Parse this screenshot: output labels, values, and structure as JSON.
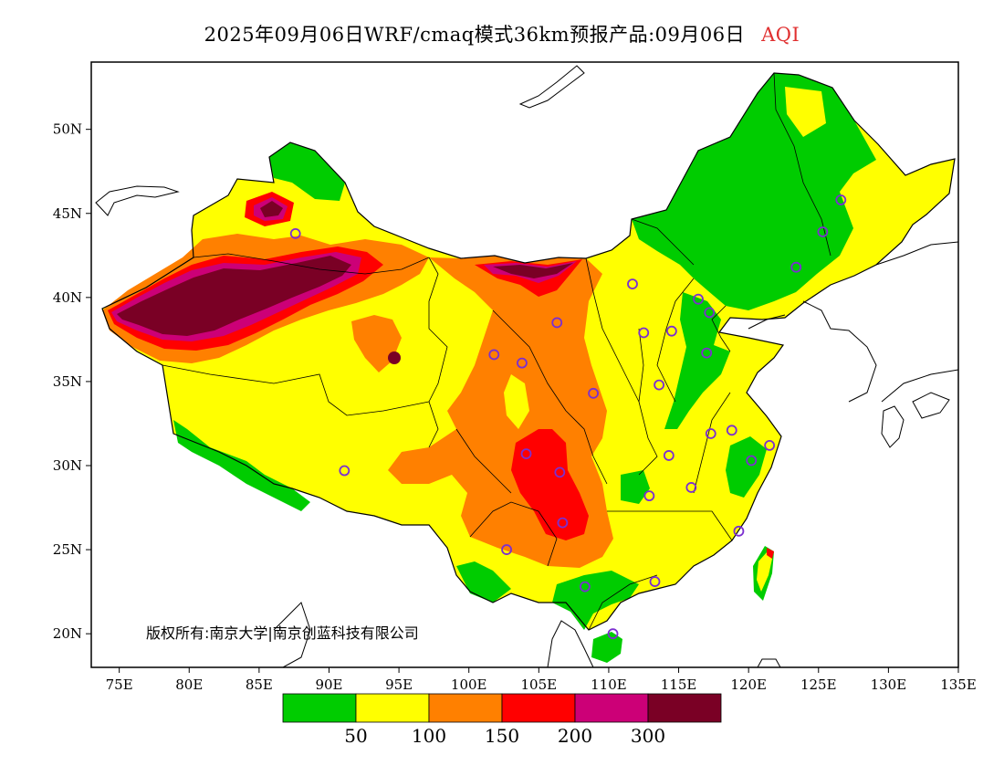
{
  "title": "2025年09月06日WRF/cmaq模式36km预报产品:09月06日",
  "title_highlight": "AQI",
  "copyright": "版权所有:南京大学|南京创蓝科技有限公司",
  "colors": {
    "c0_50": "#00cc00",
    "c50_100": "#ffff00",
    "c100_150": "#ff8000",
    "c150_200": "#ff0000",
    "c200_300": "#cc0077",
    "c300": "#7a0025",
    "title_highlight": "#e03030",
    "station": "#7b2fd0"
  },
  "chart_data": {
    "type": "heatmap",
    "axes": {
      "lon_range": [
        73,
        135
      ],
      "lat_range": [
        18,
        54
      ],
      "x_ticks": [
        {
          "value": 75,
          "label": "75E"
        },
        {
          "value": 80,
          "label": "80E"
        },
        {
          "value": 85,
          "label": "85E"
        },
        {
          "value": 90,
          "label": "90E"
        },
        {
          "value": 95,
          "label": "95E"
        },
        {
          "value": 100,
          "label": "100E"
        },
        {
          "value": 105,
          "label": "105E"
        },
        {
          "value": 110,
          "label": "110E"
        },
        {
          "value": 115,
          "label": "115E"
        },
        {
          "value": 120,
          "label": "120E"
        },
        {
          "value": 125,
          "label": "125E"
        },
        {
          "value": 130,
          "label": "130E"
        },
        {
          "value": 135,
          "label": "135E"
        }
      ],
      "y_ticks": [
        {
          "value": 20,
          "label": "20N"
        },
        {
          "value": 25,
          "label": "25N"
        },
        {
          "value": 30,
          "label": "30N"
        },
        {
          "value": 35,
          "label": "35N"
        },
        {
          "value": 40,
          "label": "40N"
        },
        {
          "value": 45,
          "label": "45N"
        },
        {
          "value": 50,
          "label": "50N"
        }
      ]
    },
    "legend": {
      "colors": [
        "#00cc00",
        "#ffff00",
        "#ff8000",
        "#ff0000",
        "#cc0077",
        "#7a0025"
      ],
      "labels": [
        "50",
        "100",
        "150",
        "200",
        "300"
      ]
    },
    "stations": [
      {
        "lon": 87.6,
        "lat": 43.8
      },
      {
        "lon": 91.1,
        "lat": 29.7
      },
      {
        "lon": 101.8,
        "lat": 36.6
      },
      {
        "lon": 103.8,
        "lat": 36.1
      },
      {
        "lon": 106.3,
        "lat": 38.5
      },
      {
        "lon": 111.7,
        "lat": 40.8
      },
      {
        "lon": 108.9,
        "lat": 34.3
      },
      {
        "lon": 104.1,
        "lat": 30.7
      },
      {
        "lon": 106.5,
        "lat": 29.6
      },
      {
        "lon": 106.7,
        "lat": 26.6
      },
      {
        "lon": 102.7,
        "lat": 25.0
      },
      {
        "lon": 108.3,
        "lat": 22.8
      },
      {
        "lon": 110.3,
        "lat": 20.0
      },
      {
        "lon": 113.3,
        "lat": 23.1
      },
      {
        "lon": 112.9,
        "lat": 28.2
      },
      {
        "lon": 114.3,
        "lat": 30.6
      },
      {
        "lon": 115.9,
        "lat": 28.7
      },
      {
        "lon": 117.3,
        "lat": 31.9
      },
      {
        "lon": 118.8,
        "lat": 32.1
      },
      {
        "lon": 121.5,
        "lat": 31.2
      },
      {
        "lon": 120.2,
        "lat": 30.3
      },
      {
        "lon": 119.3,
        "lat": 26.1
      },
      {
        "lon": 113.6,
        "lat": 34.8
      },
      {
        "lon": 112.5,
        "lat": 37.9
      },
      {
        "lon": 114.5,
        "lat": 38.0
      },
      {
        "lon": 116.4,
        "lat": 39.9
      },
      {
        "lon": 117.2,
        "lat": 39.1
      },
      {
        "lon": 117.0,
        "lat": 36.7
      },
      {
        "lon": 123.4,
        "lat": 41.8
      },
      {
        "lon": 125.3,
        "lat": 43.9
      },
      {
        "lon": 126.6,
        "lat": 45.8
      }
    ],
    "regions": [
      {
        "aqi": "0-50",
        "where": "Northeast China, North China Plain east, coastal Fujian/Guangdong, Guangxi/Hainan south, Yunnan south edge, Tibet south edge, far north Xinjiang"
      },
      {
        "aqi": "50-100",
        "where": "Most of Tibet, Qinghai, Inner Mongolia, Central/East China, south coast"
      },
      {
        "aqi": "100-150",
        "where": "Xinjiang surrounds, Sichuan basin, Gansu/Ningxia, Guizhou, central Qinghai"
      },
      {
        "aqi": "150-200",
        "where": "Tarim basin margin, Sichuan/Chongqing core"
      },
      {
        "aqi": "200-300",
        "where": "Tarim basin ring, western Inner Mongolia"
      },
      {
        "aqi": ">300",
        "where": "Tarim basin (Taklimakan) core, western Inner Mongolia (Alxa)"
      }
    ]
  }
}
